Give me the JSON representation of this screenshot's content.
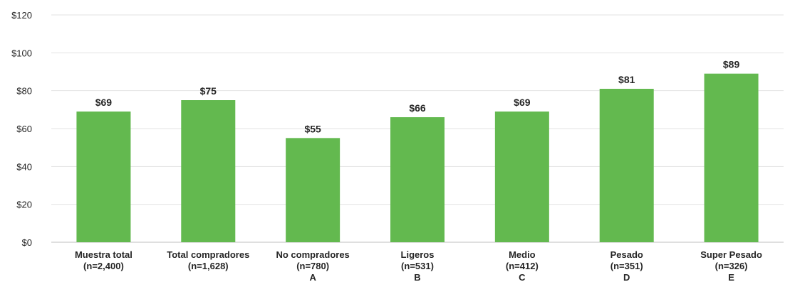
{
  "chart_data": {
    "type": "bar",
    "title": "",
    "xlabel": "",
    "ylabel": "",
    "ylim": [
      0,
      120
    ],
    "y_ticks": [
      "$0",
      "$20",
      "$40",
      "$60",
      "$80",
      "$100",
      "$120"
    ],
    "y_tick_values": [
      0,
      20,
      40,
      60,
      80,
      100,
      120
    ],
    "grid": true,
    "bar_color": "#63b94f",
    "categories": [
      [
        "Muestra total",
        "(n=2,400)"
      ],
      [
        "Total compradores",
        "(n=1,628)"
      ],
      [
        "No compradores",
        "(n=780)",
        "A"
      ],
      [
        "Ligeros",
        "(n=531)",
        "B"
      ],
      [
        "Medio",
        "(n=412)",
        "C"
      ],
      [
        "Pesado",
        "(n=351)",
        "D"
      ],
      [
        "Super Pesado",
        "(n=326)",
        "E"
      ]
    ],
    "values": [
      69,
      75,
      55,
      66,
      69,
      81,
      89
    ],
    "data_labels": [
      "$69",
      "$75",
      "$55",
      "$66",
      "$69",
      "$81",
      "$89"
    ]
  }
}
